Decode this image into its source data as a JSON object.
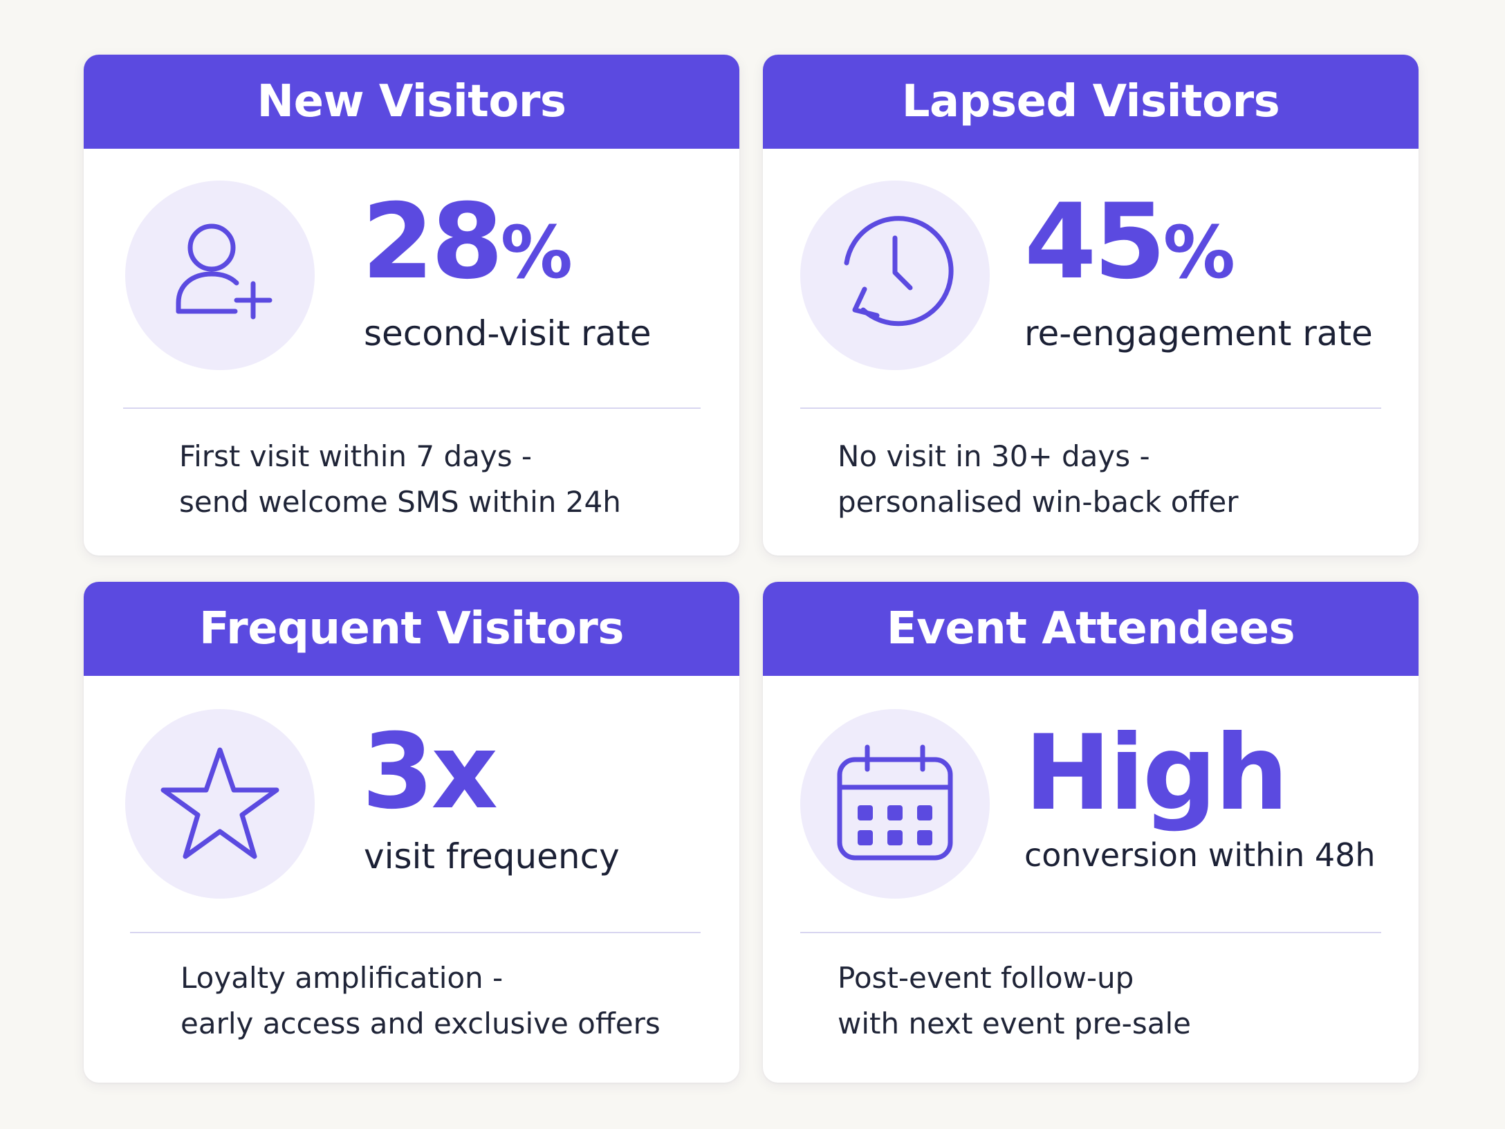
{
  "colors": {
    "accent": "#5b4ae0",
    "icon_bg": "#efecfb",
    "text_dark": "#1b2035",
    "background": "#f8f7f3"
  },
  "cards": [
    {
      "title": "New Visitors",
      "icon": "user-plus-icon",
      "value": "28",
      "value_suffix": "%",
      "label": "second-visit rate",
      "desc_line1": "First visit within 7 days -",
      "desc_line2": "send welcome SMS within 24h"
    },
    {
      "title": "Lapsed Visitors",
      "icon": "clock-return-icon",
      "value": "45",
      "value_suffix": "%",
      "label": "re-engagement rate",
      "desc_line1": "No visit in 30+ days -",
      "desc_line2": "personalised win-back offer"
    },
    {
      "title": "Frequent Visitors",
      "icon": "star-icon",
      "value": "3x",
      "value_suffix": "",
      "label": "visit frequency",
      "desc_line1": "Loyalty amplification -",
      "desc_line2": "early access and exclusive offers"
    },
    {
      "title": "Event Attendees",
      "icon": "calendar-icon",
      "value": "High",
      "value_suffix": "",
      "label": "conversion within 48h",
      "desc_line1": "Post-event follow-up",
      "desc_line2": "with next event pre-sale"
    }
  ]
}
